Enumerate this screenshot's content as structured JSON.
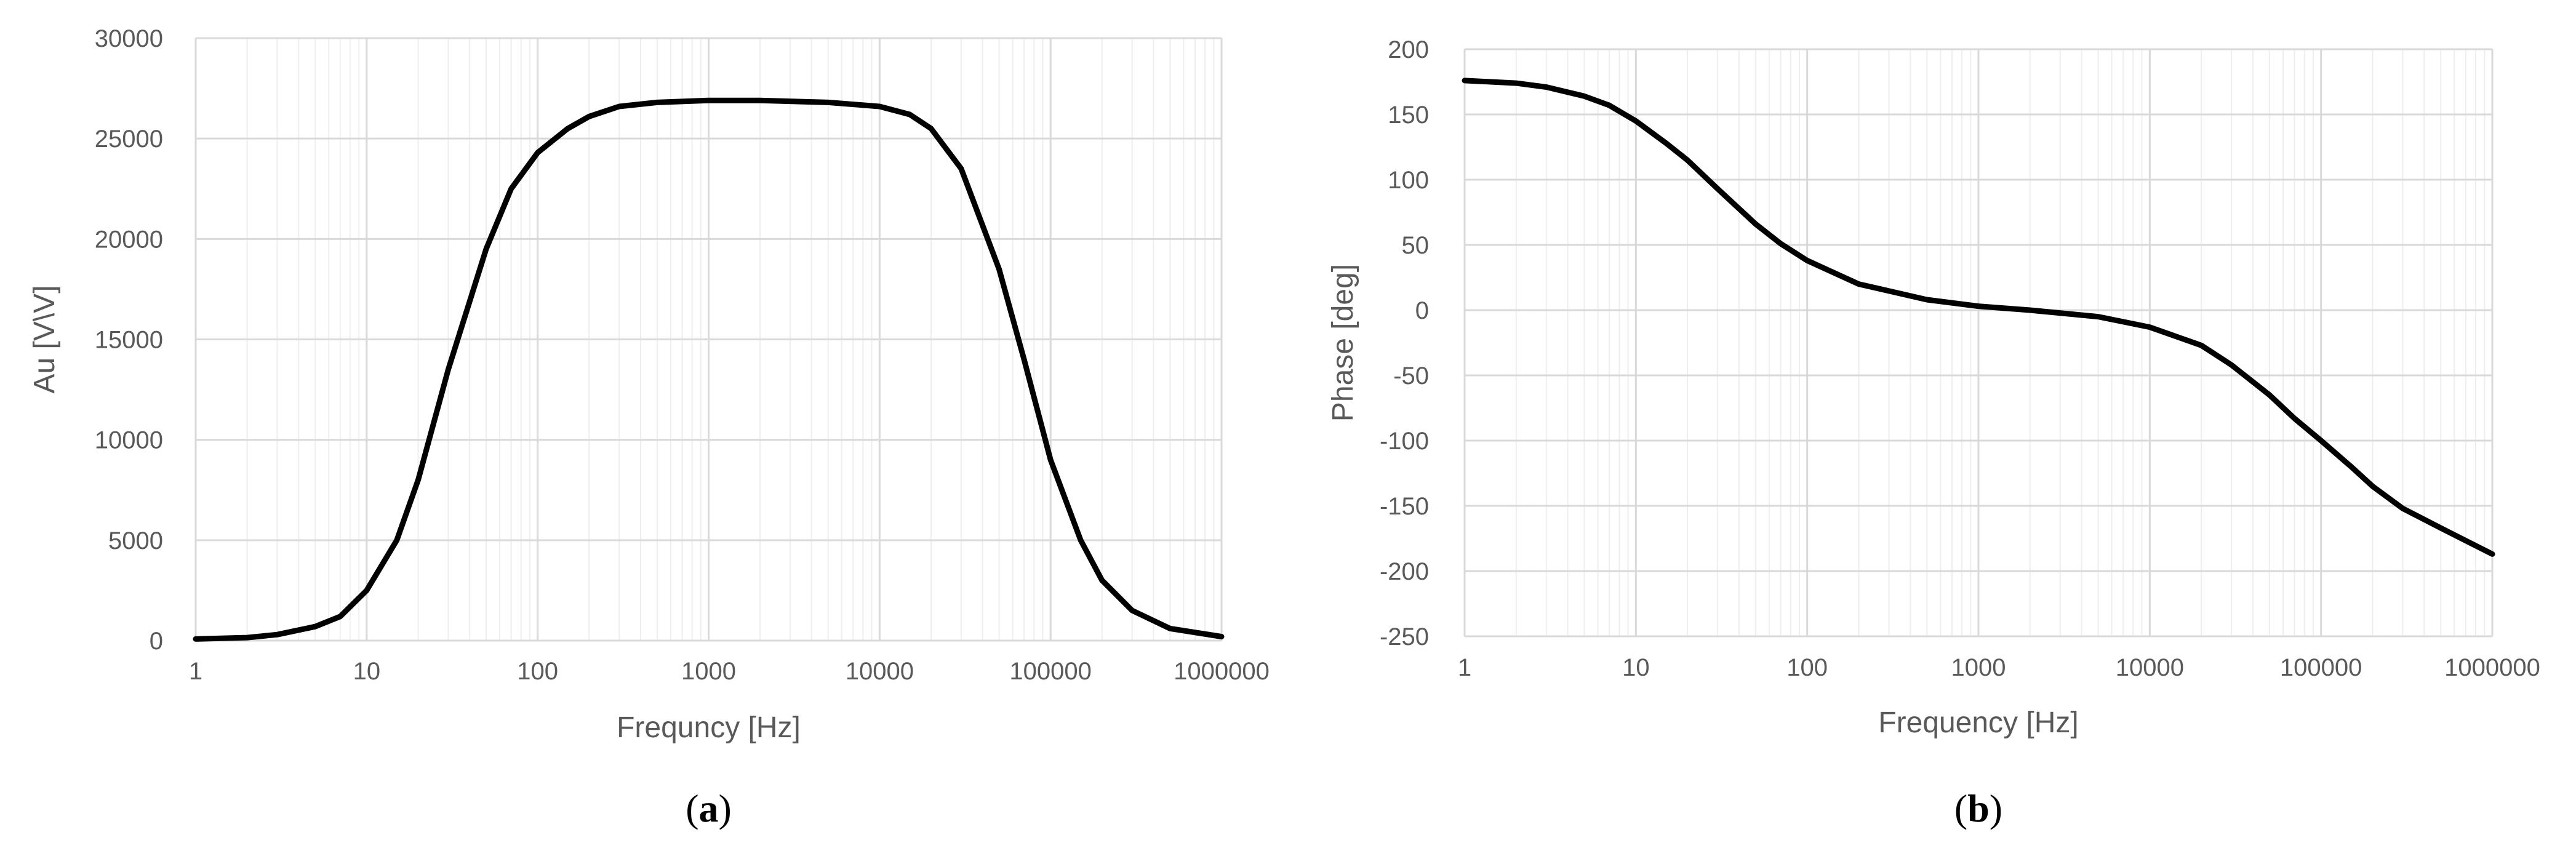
{
  "chart_data": [
    {
      "type": "line",
      "panel_label": {
        "open": "(",
        "letter": "a",
        "close": ")"
      },
      "xlabel": "Frequncy [Hz]",
      "ylabel": "Au  [V\\V]",
      "x_scale": "log",
      "xlim": [
        1,
        1000000
      ],
      "ylim": [
        0,
        30000
      ],
      "x_ticks": [
        1,
        10,
        100,
        1000,
        10000,
        100000,
        1000000
      ],
      "y_ticks": [
        0,
        5000,
        10000,
        15000,
        20000,
        25000,
        30000
      ],
      "grid": true,
      "series": [
        {
          "x": [
            1,
            2,
            3,
            5,
            7,
            10,
            15,
            20,
            30,
            50,
            70,
            100,
            150,
            200,
            300,
            500,
            1000,
            2000,
            5000,
            10000,
            15000,
            20000,
            30000,
            50000,
            70000,
            100000,
            150000,
            200000,
            300000,
            500000,
            1000000
          ],
          "y": [
            80,
            150,
            300,
            700,
            1200,
            2500,
            5000,
            8000,
            13500,
            19500,
            22500,
            24300,
            25500,
            26100,
            26600,
            26800,
            26900,
            26900,
            26800,
            26600,
            26200,
            25500,
            23500,
            18500,
            14000,
            9000,
            5000,
            3000,
            1500,
            600,
            200
          ]
        }
      ]
    },
    {
      "type": "line",
      "panel_label": {
        "open": "(",
        "letter": "b",
        "close": ")"
      },
      "xlabel": "Frequency [Hz]",
      "ylabel": "Phase [deg]",
      "x_scale": "log",
      "xlim": [
        1,
        1000000
      ],
      "ylim": [
        -250,
        200
      ],
      "x_ticks": [
        1,
        10,
        100,
        1000,
        10000,
        100000,
        1000000
      ],
      "y_ticks": [
        -250,
        -200,
        -150,
        -100,
        -50,
        0,
        50,
        100,
        150,
        200
      ],
      "grid": true,
      "series": [
        {
          "x": [
            1,
            2,
            3,
            5,
            7,
            10,
            15,
            20,
            30,
            50,
            70,
            100,
            200,
            500,
            1000,
            2000,
            5000,
            10000,
            20000,
            30000,
            50000,
            70000,
            100000,
            150000,
            200000,
            300000,
            500000,
            1000000
          ],
          "y": [
            176,
            174,
            171,
            164,
            157,
            145,
            128,
            115,
            93,
            66,
            51,
            38,
            20,
            8,
            3,
            0,
            -5,
            -13,
            -27,
            -42,
            -65,
            -83,
            -100,
            -120,
            -135,
            -152,
            -167,
            -187
          ]
        }
      ]
    }
  ]
}
